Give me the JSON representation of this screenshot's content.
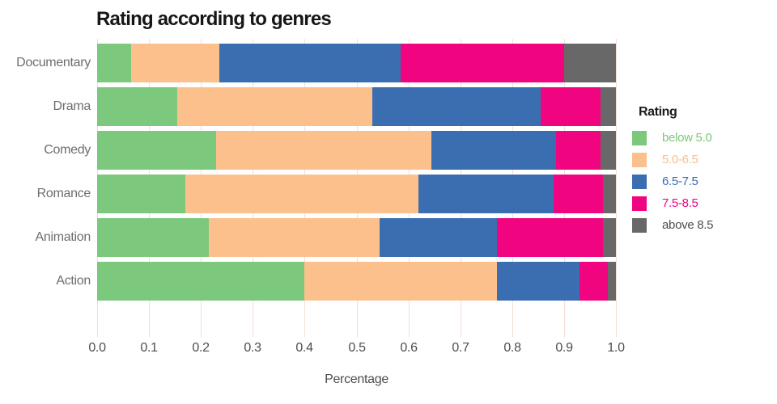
{
  "chart_data": {
    "type": "bar",
    "stacked": true,
    "orientation": "horizontal",
    "title": "Rating according to genres",
    "xlabel": "Percentage",
    "ylabel": "",
    "legend_title": "Rating",
    "legend_position": "right",
    "grid": "vertical light pink gridlines on white background",
    "categories": [
      "Documentary",
      "Drama",
      "Comedy",
      "Romance",
      "Animation",
      "Action"
    ],
    "xlim": [
      0.0,
      1.0
    ],
    "x_ticks": [
      "0.0",
      "0.1",
      "0.2",
      "0.3",
      "0.4",
      "0.5",
      "0.6",
      "0.7",
      "0.8",
      "0.9",
      "1.0"
    ],
    "series": [
      {
        "name": "below 5.0",
        "color": "#7CC87C",
        "label_color": "#7CC87C",
        "values": [
          0.065,
          0.155,
          0.23,
          0.17,
          0.215,
          0.4
        ]
      },
      {
        "name": "5.0-6.5",
        "color": "#FBC08C",
        "label_color": "#FBC08C",
        "values": [
          0.17,
          0.375,
          0.415,
          0.45,
          0.33,
          0.37
        ]
      },
      {
        "name": "6.5-7.5",
        "color": "#3A6EB1",
        "label_color": "#3A6EB1",
        "values": [
          0.35,
          0.325,
          0.24,
          0.26,
          0.225,
          0.16
        ]
      },
      {
        "name": "7.5-8.5",
        "color": "#F0047F",
        "label_color": "#F0047F",
        "values": [
          0.315,
          0.115,
          0.085,
          0.095,
          0.205,
          0.055
        ]
      },
      {
        "name": "above 8.5",
        "color": "#686868",
        "label_color": "#4D4D4D",
        "values": [
          0.1,
          0.03,
          0.03,
          0.025,
          0.025,
          0.015
        ]
      }
    ]
  }
}
